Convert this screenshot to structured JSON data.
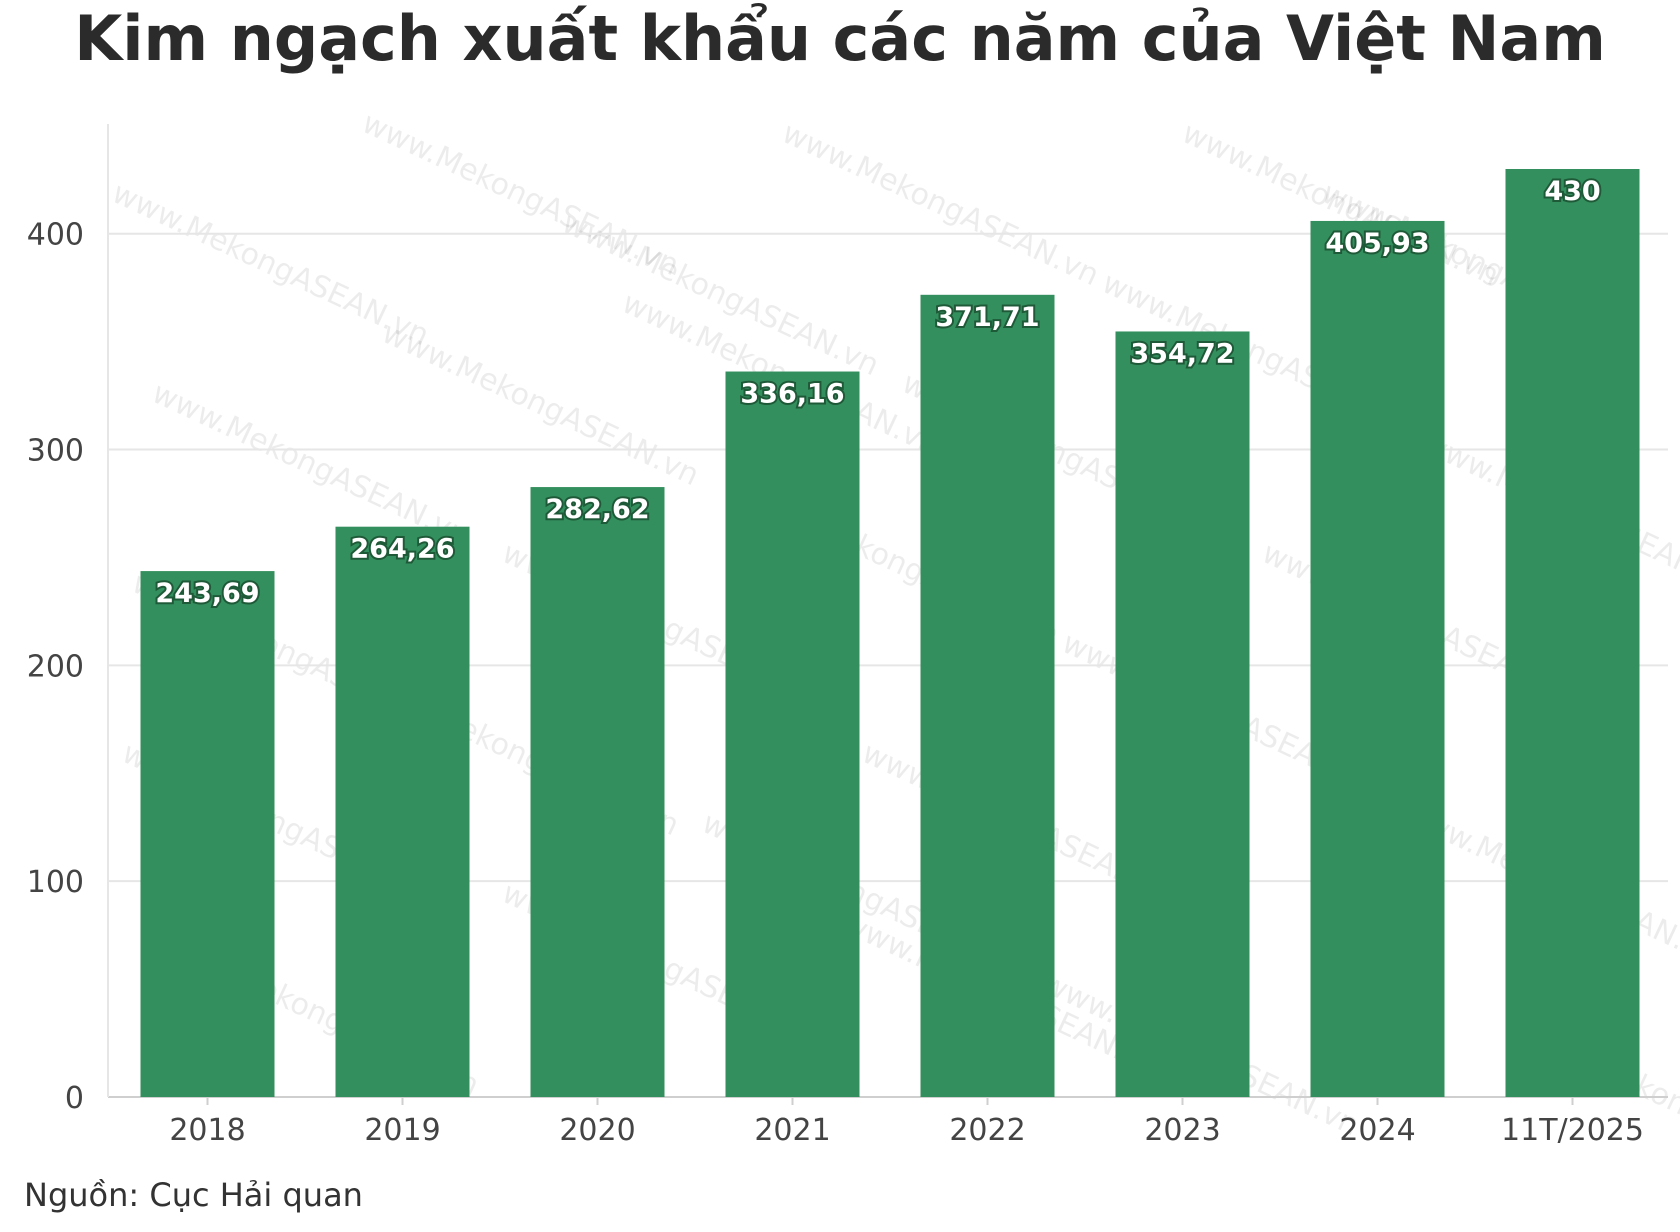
{
  "title": "Kim ngạch xuất khẩu các năm của Việt Nam",
  "source": "Nguồn: Cục Hải quan",
  "watermark": "www.MekongASEAN.vn",
  "colors": {
    "bar": "#338f5d",
    "grid": "#e6e6e6",
    "axis": "#cfcfcf",
    "label_outline": "#1f5a38"
  },
  "chart_data": {
    "type": "bar",
    "categories": [
      "2018",
      "2019",
      "2020",
      "2021",
      "2022",
      "2023",
      "2024",
      "11T/2025"
    ],
    "values": [
      243.69,
      264.26,
      282.62,
      336.16,
      371.71,
      354.72,
      405.93,
      430
    ],
    "value_labels": [
      "243,69",
      "264,26",
      "282,62",
      "336,16",
      "371,71",
      "354,72",
      "405,93",
      "430"
    ],
    "yticks": [
      0,
      100,
      200,
      300,
      400
    ],
    "ylim": [
      0,
      449
    ],
    "grid": true,
    "legend": "none"
  }
}
